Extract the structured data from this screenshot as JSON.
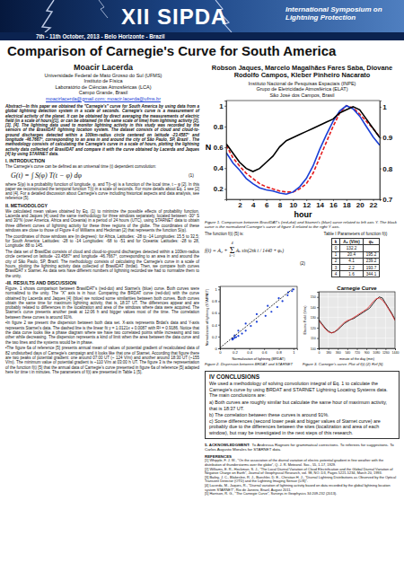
{
  "header": {
    "event": "XII SIPDA",
    "symposium": "International Symposium on Lightning Protection",
    "dates": "7th - 11th October, 2013 - Belo Horizonte - Brazil"
  },
  "title": "Comparison of Carnegie's Curve for South America",
  "authors_left": {
    "name": "Moacir Lacerda",
    "affiliations": [
      "Universidade Federal de Mato Grosso do Sul (UFMS)",
      "Instituto de Física",
      "Laboratório de Ciências Atmosféricas (LCA)",
      "Campo Grande, Brasil"
    ],
    "email": "moacirlacerda@gmail.com; moacir.lacerda@ufms.br"
  },
  "authors_right": {
    "names": "Robson Jaques, Marcelo Magalhães Fares Saba, Diovane Rodolfo Campos, Kleber Pinheiro Nacarato",
    "affiliations": [
      "Instituto Nacional de Pesquisas Espaciais (INPE)",
      "Grupo de Eletricidade Atmosférica (ELAT)",
      "São José dos Campos, Brasil"
    ]
  },
  "abstract": {
    "label": "Abstract—",
    "text": "In this paper we obtained the \"Carnegie's\" curve for South America by using data from a global lightning detection system in a scale of seconds. Carnegie's curve is a measurement of electrical activity of the planet. It can be obtained by direct averaging the measurements of electric field (in a scale of hours)[1], or can be obtained (in the same scale of time) from lightning activity [2], [3], [4]. The lightning data used to monitor lightning activity in this study was recorded by the sensors of the BrasilDAT lightning location system. The dataset consists of cloud and cloud-to-ground discharges detected within a 100km-radius circle centered on latitude -23.4587° and longitude -46.7667°, corresponding to an area in and around the city of São Paulo, SP, Brazil . The methodology consists of calculating the Carnegie's curve in a scale of hours, plotting the lightning activity data collected of BrasilDAT and compare it with the curve obtained by Lacerda and Jaques [4] by using STARNET data."
  },
  "introduction": {
    "heading": "I. INTRODUCTION",
    "paragraphs": [
      "The Carnegie's curve can be defined as an universal time (t) dependent convolution:",
      "where S(φ) is a probability function of longitude, φ, and T(t–φ) is a function of the local time, t – φ [2]. In this paper we reconstructed the temporal function T(t) in a scale of seconds. For more details about Eq. 1 see [2] and [4]. For a detailed discussion about Carnegie's curve including historical aspects and data analysis, see reference [5]."
    ],
    "equation": {
      "text": "G(t) = ∫ S(φ) T(t − φ) dφ",
      "number": "(1)"
    }
  },
  "methodology": {
    "heading": "II. METHODOLOGY",
    "paragraphs": [
      "We calculated mean values obtained by Eq. (1) to minimize the possible effects of probability function. Lacerda and Jaques [4] used the same methodology for three windows separately, located between -30° S and 30°N (over America, Africa and Oceania) in a period of 24 hours (UTC), using STARNET data to obtain three different curves of lightning activity for these three regions of the globe. The coordinates of these windows are close to those of Figure 4 of Williams and Heckman [2] that represents the function S(φ).",
      "The coordinates of those windows are (in degrees): for Africa, Latitudes: -28 to -14 Longitudes: 15.5 to 32.5; for South America: Latitudes: -28 to -14 Longitudes: -68 to -51 and for Oceania: Latitudes: -28 to 28, Longitude: 88 to 145.",
      "The data set of BrasilDat consists of cloud and cloud-to-ground discharges detected within a 100km-radius circle centered on latitude -23.4587° and longitude -46.7667°, corresponding to an area in and around the city of São Paulo, SP, Brazil. The methodology consists of calculating the Carnegie's curve in a scale of hours, plotting the lightning activity data collected of BrasilDAT (brdat). Then, we compare both curves BrasilDAT x Starnet. As data sets have different numbers of lightning recorded we had to normalize them to the unity."
    ]
  },
  "results": {
    "heading": "-III. RESULTS AND DISCUSSION",
    "paragraphs": [
      "Figure. 1 shows comparison between BrasilDAT's (red-dot) and Starnet's (blue) curve. Both curves were normalized to the unity. The \"X\" axis is in hour. Comparing the BRDAT curve (red-dot) with the curve obtained by Lacerda and Jaques [4] (blue) we noticed some similarities between both curves. Both curves obtain the same time for maximum lightning activity, that is, 18:37 UT. The differences appear and are probably related to differences in the localization and area of the windows where data were acquired. The Starnet's curve presents another peak at 12:06 h and bigger values most of the time. The correlation between these curves is around 91%.",
      "•In figure 2 we present the dispersion between both data set. X-axis represents Brdat's data and Y-axis represents Starnet's data. The dashed line is the linear fit y = 1.0121x + 0.0087 with R² = 0.9186. Notice that the data curve looks like a phase diagram where we have two correlated points while increasing and two other while decreasing. The dispersion represents a kind of limit when the area between the data curve and the two lines and the systems would be in phase.",
      "•The figure 6a of reference [5] presents annual mean of values of potential gradient of recalculated data of 82 undisturbed days of Carnegie's campaign and it looks like that one of Starnet. According that figure there are two peaks of potential gradient: one around 07:00 UT (~ 124 V/m) and another around 18:30 UT (~155 V/m). The minimum value of potential gradient is ~110 V/m at 03:00 h UT. The figure 3 is the representation of the function f(t) [5] that the annual data of Carnegie's curve presented in figure 6a of reference [5] adapted here for time t in minutes. The parameters of f(t) are presented in Table 1 [5]."
    ]
  },
  "chart_data": [
    {
      "type": "line",
      "caption": "Figure 1. Comparison between BrasilDAT's (red-dot) and Starnet's (blue) curve related to left axis Y. The black curve is the normalized Carnegie's curve of figure 3 related to the right Y axis.",
      "x_label": "hour",
      "y_label": "N",
      "x": [
        0,
        1,
        2,
        3,
        4,
        5,
        6,
        7,
        8,
        9,
        10,
        11,
        12,
        13,
        14,
        15,
        16,
        17,
        18,
        19,
        20,
        21,
        22,
        23
      ],
      "xlim": [
        0,
        23
      ],
      "xticks": [
        2,
        4,
        6,
        8,
        10,
        12,
        14,
        16,
        18,
        20,
        22
      ],
      "ylim": [
        0.1,
        1.05
      ],
      "yticks": [
        0.2,
        0.4,
        0.6,
        0.8,
        1
      ],
      "y2lim": [
        0.7,
        1.02
      ],
      "y2ticks": [
        0.7,
        0.8,
        0.9,
        1
      ],
      "series": [
        {
          "color": "#e41a1c",
          "line_style": "dashed",
          "values": [
            0.62,
            0.5,
            0.42,
            0.35,
            0.3,
            0.25,
            0.22,
            0.2,
            0.18,
            0.17,
            0.17,
            0.2,
            0.25,
            0.35,
            0.5,
            0.65,
            0.8,
            0.93,
            1.0,
            0.98,
            0.92,
            0.85,
            0.78,
            0.7
          ]
        },
        {
          "color": "#1a3fd6",
          "line_style": "solid",
          "values": [
            0.55,
            0.45,
            0.38,
            0.3,
            0.25,
            0.21,
            0.19,
            0.18,
            0.16,
            0.15,
            0.17,
            0.22,
            0.3,
            0.42,
            0.58,
            0.72,
            0.85,
            0.95,
            1.0,
            0.97,
            0.9,
            0.8,
            0.7,
            0.62
          ]
        },
        {
          "color": "#000000",
          "line_style": "solid",
          "axis": "y2",
          "values": [
            0.88,
            0.85,
            0.82,
            0.8,
            0.79,
            0.8,
            0.82,
            0.84,
            0.87,
            0.89,
            0.9,
            0.91,
            0.92,
            0.93,
            0.94,
            0.95,
            0.96,
            0.98,
            0.99,
            1.0,
            0.99,
            0.96,
            0.93,
            0.9
          ]
        }
      ]
    },
    {
      "type": "scatter",
      "caption": "Figure 2. Dispersion between BRDAT and STARNET",
      "x_label": "Normalization of lightning (BRDAT)",
      "y_label": "Normalization of lightning (STARNET)",
      "xlim": [
        0,
        1.05
      ],
      "xticks": [
        0,
        0.2,
        0.4,
        0.6,
        0.8,
        1
      ],
      "ylim": [
        0,
        1.05
      ],
      "yticks": [
        0,
        0.2,
        0.4,
        0.6,
        0.8,
        1
      ],
      "series": [
        {
          "type": "scatter",
          "color": "#1a3fd6",
          "marker": "circle",
          "x": [
            0.62,
            0.5,
            0.42,
            0.35,
            0.3,
            0.25,
            0.22,
            0.2,
            0.18,
            0.17,
            0.17,
            0.2,
            0.25,
            0.35,
            0.5,
            0.65,
            0.8,
            0.93,
            1.0,
            0.98,
            0.92,
            0.85,
            0.78,
            0.7
          ],
          "values": [
            0.55,
            0.45,
            0.38,
            0.3,
            0.25,
            0.21,
            0.19,
            0.18,
            0.16,
            0.15,
            0.17,
            0.22,
            0.3,
            0.42,
            0.58,
            0.72,
            0.85,
            0.95,
            1.0,
            0.97,
            0.9,
            0.8,
            0.7,
            0.62
          ]
        },
        {
          "type": "line",
          "color": "#000000",
          "line_style": "dashed",
          "x": [
            0,
            1
          ],
          "values": [
            0.0087,
            1.0208
          ]
        }
      ]
    },
    {
      "type": "line",
      "title": "Carnegie Curve",
      "caption": "Figure 3. Carnegie's curve. Plot of f(t) (2) Ref [5].",
      "x_label": "minute of the day (min)",
      "y_label": "Electric Field (V/m)",
      "grid": true,
      "x": [
        0,
        60,
        120,
        180,
        240,
        300,
        360,
        420,
        480,
        540,
        600,
        660,
        720,
        780,
        840,
        900,
        960,
        1020,
        1080,
        1140,
        1200,
        1260,
        1320,
        1380,
        1440
      ],
      "xlim": [
        0,
        1440
      ],
      "xticks": [
        0,
        180,
        360,
        540,
        720,
        900,
        1080,
        1260,
        1440
      ],
      "ylim": [
        100,
        155
      ],
      "yticks": [
        100,
        110,
        120,
        130,
        140,
        150
      ],
      "series": [
        {
          "color": "#000000",
          "line_style": "solid",
          "values": [
            128,
            124,
            120,
            117,
            115,
            116,
            118,
            121,
            124,
            126,
            128,
            129,
            131,
            133,
            135,
            137,
            139,
            143,
            147,
            150,
            149,
            144,
            139,
            134,
            128
          ]
        },
        {
          "color": "#e41a1c",
          "line_style": "solid",
          "values": [
            127,
            123,
            119,
            116,
            115,
            116,
            119,
            122,
            125,
            127,
            128,
            130,
            132,
            134,
            136,
            138,
            141,
            145,
            148,
            149,
            147,
            143,
            138,
            133,
            127
          ]
        }
      ]
    }
  ],
  "function_intro": "The function f(t) [5] is:",
  "equation2": {
    "lhs": "f(t) = A₀ +",
    "sum": "Σ",
    "upper": "4",
    "lower": "k=1",
    "term": "Aₖ sin(2πk t / 1440 + φₖ)",
    "number": "(2)"
  },
  "table": {
    "title": "Table I Parameters of function f(t)",
    "columns": [
      "k",
      "Aₖ (V/m)",
      "φₖ"
    ],
    "rows": [
      [
        0,
        132.2,
        null
      ],
      [
        1,
        20.4,
        195.2
      ],
      [
        2,
        4.1,
        239.2
      ],
      [
        3,
        2.2,
        193.7
      ],
      [
        4,
        1.6,
        344.1
      ]
    ]
  },
  "conclusions": {
    "heading": "IV CONCLUSIONS",
    "intro": "We used a methodology of solving convolution integral of Eq. 1 to calculate the Carnegie's curve by using BRDAT and STARNET Lightning Locating Systems data. The main conclusions are:",
    "items": [
      "a) Both curves are roughly similar but calculate the same hour of maximum activity, that is 18:37 UT.",
      "b) The correlation between these curves is around 91%.",
      "c) Some differences (second lower peak and bigger values of Starnet curve) are probably due to the differences between the sites (localization and area of each window), but may be investigated in the next steps of this research."
    ]
  },
  "acknowledgment": {
    "heading": "5. ACKNOWLEDGMENT:",
    "text": "To Andressa Rognoni for grammatical corrections. To referees for suggestions. To Carlos Augusto Morales for STARNET data."
  },
  "references": {
    "heading": "REFERENCES",
    "items": [
      "[1] Whipple, F. J. W., \"On the association of the diurnal variation of electric potential gradient in fine weather with the distribution of thunderstorms over the globe\", Q. J. R. Meteorol. Soc., 55, 1-17, 1929.",
      "[2] Williams, E. R., Heckman, S. J., \"The Local Diurnal Variation of Cloud Electrification and the Global Diurnal Variation of Negative Charge on Earth\", Journal of Geophysical Research, vol. 98, NO. D3, Pages 5221-5234, March 20, 1993.",
      "[3] Bailey, J. C., Blakeslee, R. J., Buechler, D. E., Christian H. J., \"Diurnal Lightning Distributions as Observed by the Optical Transient Detector (OTD) and the Lightning Imaging Sensor (LIS)\".",
      "[4] Lacerda, M., Jaques, R., \"Diurnal variation of lightning activity based on data recorded by the global lightning location system STARNET\", Rio de Janeiro, Brazil, August 2011.",
      "[5] Harrison, R. G., \"The Carnegie Curve\", Surveys in Geophysics 34:209-232 (2013)."
    ]
  }
}
